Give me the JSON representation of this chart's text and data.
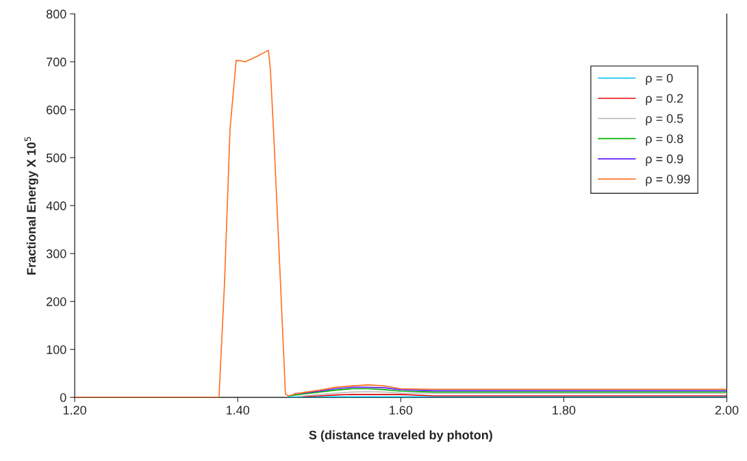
{
  "chart_data": {
    "type": "line",
    "xlabel": "S (distance traveled by photon)",
    "ylabel": "Fractional Energy X 10$^{5}$",
    "x": [
      1.2,
      1.377,
      1.3838,
      1.3906,
      1.3981,
      1.404,
      1.409,
      1.4233,
      1.4376,
      1.44,
      1.4443,
      1.4527,
      1.4585,
      1.462,
      1.47,
      1.48,
      1.5,
      1.52,
      1.54,
      1.56,
      1.58,
      1.6,
      1.64,
      1.7,
      1.8,
      1.9,
      2.0
    ],
    "series": [
      {
        "name": "ρ = 0",
        "color": "#00c0f0",
        "values": [
          null,
          null,
          null,
          null,
          null,
          null,
          null,
          null,
          null,
          null,
          null,
          null,
          null,
          1,
          1,
          1,
          1,
          1,
          1,
          1,
          1,
          1,
          1,
          1,
          1,
          1,
          1
        ]
      },
      {
        "name": "ρ = 0.2",
        "color": "#e00000",
        "values": [
          null,
          null,
          null,
          null,
          null,
          null,
          null,
          null,
          null,
          null,
          null,
          null,
          null,
          null,
          null,
          2,
          3,
          5,
          6,
          6,
          6,
          6,
          3,
          3,
          3,
          3,
          3
        ]
      },
      {
        "name": "ρ = 0.5",
        "color": "#c0c0c0",
        "values": [
          null,
          null,
          null,
          null,
          null,
          null,
          null,
          null,
          null,
          null,
          null,
          null,
          null,
          null,
          2,
          3,
          6,
          9,
          11,
          12,
          11,
          9,
          8,
          8,
          8,
          8,
          8
        ]
      },
      {
        "name": "ρ = 0.8",
        "color": "#00b000",
        "values": [
          null,
          null,
          null,
          null,
          null,
          null,
          null,
          null,
          null,
          null,
          null,
          null,
          null,
          3,
          5,
          7,
          11,
          15,
          18,
          18,
          16,
          13,
          11,
          11,
          11,
          11,
          11
        ]
      },
      {
        "name": "ρ = 0.9",
        "color": "#6020ff",
        "values": [
          null,
          null,
          null,
          null,
          null,
          null,
          null,
          null,
          null,
          null,
          null,
          null,
          null,
          null,
          8,
          9,
          13,
          18,
          21,
          21,
          20,
          16,
          14,
          14,
          14,
          14,
          14
        ]
      },
      {
        "name": "ρ = 0.99",
        "color": "#ff7020",
        "values": [
          0,
          0,
          239,
          561,
          703,
          702,
          700,
          711,
          724,
          686,
          543,
          229,
          7,
          3,
          7,
          10,
          15,
          21,
          24,
          26,
          24,
          18,
          17,
          17,
          17,
          17,
          17
        ]
      }
    ],
    "xlim": [
      1.2,
      2.0
    ],
    "xticks": [
      {
        "value": 1.2,
        "label": "1.20"
      },
      {
        "value": 1.4,
        "label": "1.40"
      },
      {
        "value": 1.6,
        "label": "1.60"
      },
      {
        "value": 1.8,
        "label": "1.80"
      },
      {
        "value": 2.0,
        "label": "2.00"
      }
    ],
    "ylim": [
      0,
      800
    ],
    "yticks": [
      0,
      100,
      200,
      300,
      400,
      500,
      600,
      700,
      800
    ],
    "grid": false,
    "legend": "top right",
    "marker": "none",
    "line_style": "solid"
  }
}
